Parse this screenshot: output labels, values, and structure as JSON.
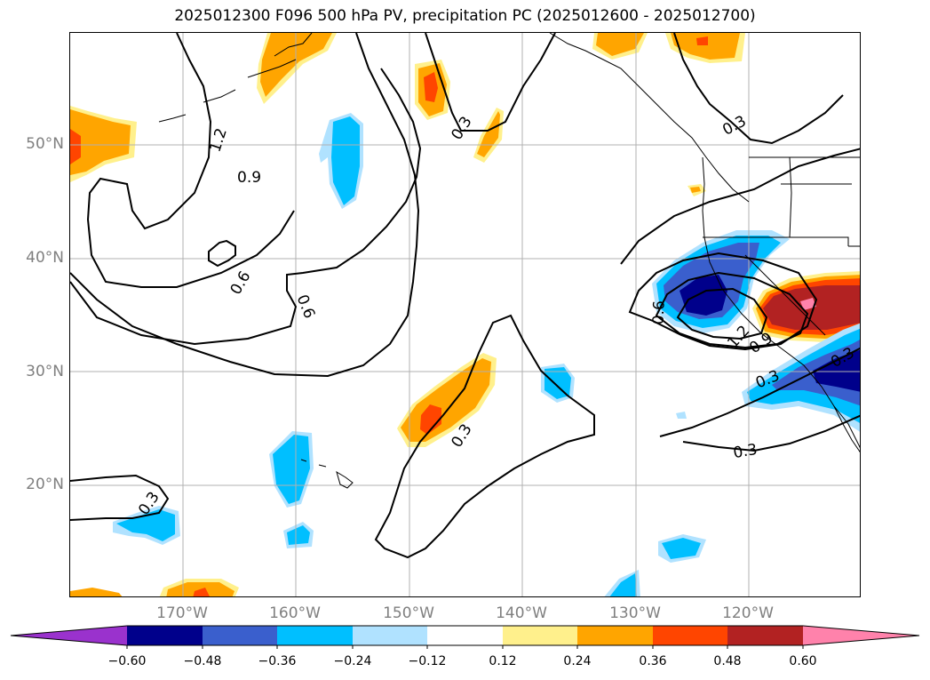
{
  "title": "2025012300 F096 500 hPa PV, precipitation PC (2025012600 - 2025012700)",
  "lat_labels": [
    "50°N",
    "40°N",
    "30°N",
    "20°N"
  ],
  "lon_labels": [
    "170°W",
    "160°W",
    "150°W",
    "140°W",
    "130°W",
    "120°W"
  ],
  "contour_labels": [
    "1.2",
    "0.9",
    "0.6",
    "0.6",
    "0.3",
    "0.3",
    "0.3",
    "0.6",
    "1.2",
    "0.9",
    "0.3",
    "0.3",
    "0.3",
    "0.3"
  ],
  "colorbar": {
    "ticks": [
      "−0.60",
      "−0.48",
      "−0.36",
      "−0.24",
      "−0.12",
      "0.12",
      "0.24",
      "0.36",
      "0.48",
      "0.60"
    ],
    "colors": [
      "#9a32cd",
      "#00008b",
      "#3a5fcd",
      "#00bfff",
      "#b0e2ff",
      "#ffffff",
      "#fff08c",
      "#ffa500",
      "#ff4500",
      "#b22222",
      "#ff82ab"
    ]
  },
  "colors": {
    "contour": "#000000",
    "grid": "#b0b0b0",
    "axis_label": "#7f7f7f"
  }
}
